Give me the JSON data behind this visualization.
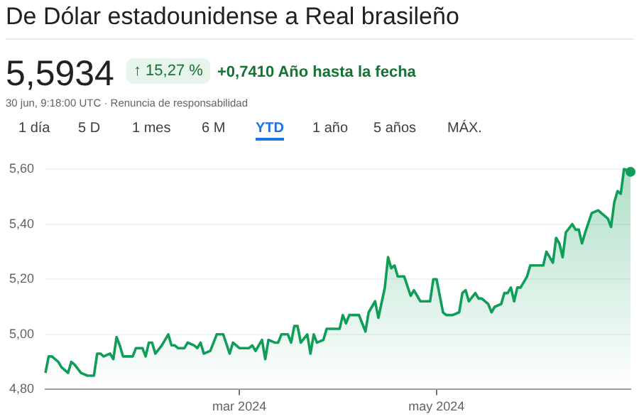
{
  "chart_data": {
    "type": "area",
    "title": "De Dólar estadounidense a Real brasileño",
    "annotations": [
      "5,5934",
      "↑ 15,27 %",
      "+0,7410 Año hasta la fecha",
      "30 jun, 9:18:00 UTC · Renuncia de responsabilidad",
      "1 día",
      "5 D",
      "1 mes",
      "6 M",
      "YTD",
      "1 año",
      "5 años",
      "MÁX."
    ],
    "x": [
      "2024-01-01",
      "2024-01-02",
      "2024-01-03",
      "2024-01-05",
      "2024-01-06",
      "2024-01-07",
      "2024-01-08",
      "2024-01-09",
      "2024-01-10",
      "2024-01-12",
      "2024-01-14",
      "2024-01-16",
      "2024-01-17",
      "2024-01-18",
      "2024-01-19",
      "2024-01-21",
      "2024-01-22",
      "2024-01-23",
      "2024-01-24",
      "2024-01-25",
      "2024-01-26",
      "2024-01-28",
      "2024-01-29",
      "2024-01-31",
      "2024-02-01",
      "2024-02-02",
      "2024-02-03",
      "2024-02-04",
      "2024-02-06",
      "2024-02-08",
      "2024-02-09",
      "2024-02-10",
      "2024-02-11",
      "2024-02-13",
      "2024-02-14",
      "2024-02-16",
      "2024-02-17",
      "2024-02-18",
      "2024-02-19",
      "2024-02-21",
      "2024-02-23",
      "2024-02-25",
      "2024-02-27",
      "2024-02-28",
      "2024-03-01",
      "2024-03-03",
      "2024-03-04",
      "2024-03-05",
      "2024-03-06",
      "2024-03-08",
      "2024-03-09",
      "2024-03-10",
      "2024-03-12",
      "2024-03-13",
      "2024-03-14",
      "2024-03-16",
      "2024-03-17",
      "2024-03-18",
      "2024-03-19",
      "2024-03-20",
      "2024-03-22",
      "2024-03-23",
      "2024-03-24",
      "2024-03-25",
      "2024-03-27",
      "2024-03-28",
      "2024-03-30",
      "2024-04-01",
      "2024-04-02",
      "2024-04-03",
      "2024-04-04",
      "2024-04-07",
      "2024-04-08",
      "2024-04-09",
      "2024-04-10",
      "2024-04-12",
      "2024-04-13",
      "2024-04-15",
      "2024-04-16",
      "2024-04-17",
      "2024-04-18",
      "2024-04-19",
      "2024-04-21",
      "2024-04-23",
      "2024-04-24",
      "2024-04-25",
      "2024-04-26",
      "2024-04-28",
      "2024-04-29",
      "2024-04-30",
      "2024-05-01",
      "2024-05-03",
      "2024-05-04",
      "2024-05-06",
      "2024-05-08",
      "2024-05-09",
      "2024-05-10",
      "2024-05-11",
      "2024-05-13",
      "2024-05-14",
      "2024-05-15",
      "2024-05-17",
      "2024-05-18",
      "2024-05-19",
      "2024-05-21",
      "2024-05-22",
      "2024-05-23",
      "2024-05-24",
      "2024-05-25",
      "2024-05-26",
      "2024-05-27",
      "2024-05-29",
      "2024-05-30",
      "2024-06-01",
      "2024-06-03",
      "2024-06-04",
      "2024-06-05",
      "2024-06-06",
      "2024-06-07",
      "2024-06-08",
      "2024-06-09",
      "2024-06-10",
      "2024-06-12",
      "2024-06-13",
      "2024-06-14",
      "2024-06-15",
      "2024-06-16",
      "2024-06-18",
      "2024-06-20",
      "2024-06-21",
      "2024-06-22",
      "2024-06-23",
      "2024-06-24",
      "2024-06-25",
      "2024-06-26",
      "2024-06-27",
      "2024-06-28",
      "2024-06-30"
    ],
    "series": [
      {
        "color": "#0f9d58",
        "values": [
          4.86,
          4.92,
          4.92,
          4.9,
          4.88,
          4.87,
          4.86,
          4.9,
          4.89,
          4.86,
          4.85,
          4.85,
          4.93,
          4.93,
          4.92,
          4.93,
          4.91,
          4.99,
          4.96,
          4.92,
          4.92,
          4.92,
          4.95,
          4.95,
          4.92,
          4.97,
          4.97,
          4.93,
          4.96,
          5.0,
          4.96,
          4.96,
          4.95,
          4.95,
          4.97,
          4.96,
          4.95,
          4.97,
          4.93,
          4.94,
          5.0,
          5.0,
          4.93,
          4.97,
          4.95,
          4.95,
          4.95,
          4.96,
          4.94,
          4.98,
          4.91,
          4.98,
          4.97,
          4.97,
          5.0,
          5.0,
          4.97,
          5.03,
          5.03,
          4.97,
          5.0,
          4.93,
          5.0,
          4.97,
          4.98,
          5.02,
          5.02,
          5.02,
          5.07,
          5.04,
          5.07,
          5.07,
          5.04,
          5.01,
          5.08,
          5.12,
          5.06,
          5.17,
          5.28,
          5.24,
          5.25,
          5.21,
          5.21,
          5.14,
          5.16,
          5.14,
          5.12,
          5.12,
          5.12,
          5.2,
          5.2,
          5.08,
          5.07,
          5.07,
          5.08,
          5.15,
          5.16,
          5.12,
          5.15,
          5.13,
          5.13,
          5.11,
          5.08,
          5.1,
          5.11,
          5.15,
          5.15,
          5.17,
          5.12,
          5.17,
          5.17,
          5.21,
          5.25,
          5.25,
          5.25,
          5.3,
          5.28,
          5.26,
          5.35,
          5.33,
          5.28,
          5.37,
          5.4,
          5.38,
          5.38,
          5.33,
          5.37,
          5.44,
          5.45,
          5.44,
          5.43,
          5.42,
          5.39,
          5.48,
          5.52,
          5.51,
          5.6,
          5.59
        ]
      }
    ],
    "xlim": [
      "2024-01-01",
      "2024-06-30"
    ],
    "xticks": [
      {
        "value": "2024-03-01",
        "label": "mar 2024"
      },
      {
        "value": "2024-05-01",
        "label": "may 2024"
      }
    ],
    "ylim": [
      4.8,
      5.6
    ],
    "yticks": [
      {
        "value": 4.8,
        "label": "4,80"
      },
      {
        "value": 5.0,
        "label": "5,00"
      },
      {
        "value": 5.2,
        "label": "5,20"
      },
      {
        "value": 5.4,
        "label": "5,40"
      },
      {
        "value": 5.6,
        "label": "5,60"
      }
    ],
    "grid": "y",
    "legend": false
  }
}
